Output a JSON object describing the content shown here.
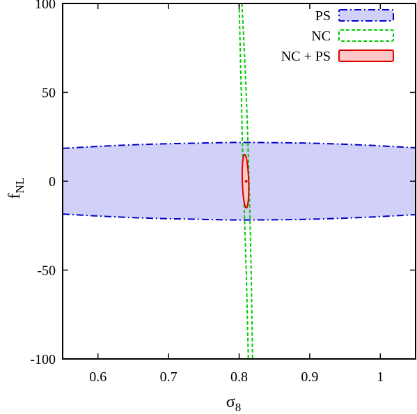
{
  "chart_data": {
    "type": "contour",
    "xlabel": "σ₈",
    "ylabel": "fNL",
    "xlabel_main": "σ",
    "xlabel_sub": "8",
    "ylabel_main": "f",
    "ylabel_sub": "NL",
    "xlim": [
      0.55,
      1.05
    ],
    "ylim": [
      -100,
      100
    ],
    "x_ticks": [
      0.6,
      0.7,
      0.8,
      0.9,
      1.0
    ],
    "x_tick_labels": [
      "0.6",
      "0.7",
      "0.8",
      "0.9",
      "1"
    ],
    "y_ticks": [
      -100,
      -50,
      0,
      50,
      100
    ],
    "y_tick_labels": [
      "-100",
      "-50",
      "0",
      "50",
      "100"
    ],
    "legend_position": "top-right",
    "grid": false,
    "series": [
      {
        "name": "PS",
        "style": "dash-dot",
        "stroke": "#0000cc",
        "fill": "#d0d0f8",
        "boundary_upper": [
          [
            0.55,
            18.5
          ],
          [
            0.65,
            20.5
          ],
          [
            0.75,
            21.5
          ],
          [
            0.81,
            21.8
          ],
          [
            0.9,
            21.4
          ],
          [
            0.98,
            20.3
          ],
          [
            1.05,
            18.8
          ]
        ],
        "boundary_lower": [
          [
            0.55,
            -18.5
          ],
          [
            0.65,
            -20.5
          ],
          [
            0.75,
            -21.5
          ],
          [
            0.81,
            -21.8
          ],
          [
            0.9,
            -21.4
          ],
          [
            0.98,
            -20.3
          ],
          [
            1.05,
            -18.8
          ]
        ]
      },
      {
        "name": "NC",
        "style": "dashed",
        "stroke": "#00cc00",
        "fill": "none",
        "boundary_left": [
          [
            0.8,
            100
          ],
          [
            0.803,
            50
          ],
          [
            0.806,
            0
          ],
          [
            0.81,
            -50
          ],
          [
            0.813,
            -100
          ]
        ],
        "boundary_right": [
          [
            0.804,
            100
          ],
          [
            0.81,
            50
          ],
          [
            0.814,
            0
          ],
          [
            0.817,
            -50
          ],
          [
            0.819,
            -100
          ]
        ]
      },
      {
        "name": "NC + PS",
        "style": "solid",
        "stroke": "#dd0000",
        "fill": "#ffc8c8",
        "center": [
          0.809,
          0
        ],
        "half_width": 0.0045,
        "half_height": 15,
        "tilt_per_fnl": -8e-05
      }
    ],
    "best_fit_point": [
      0.81,
      0
    ]
  }
}
